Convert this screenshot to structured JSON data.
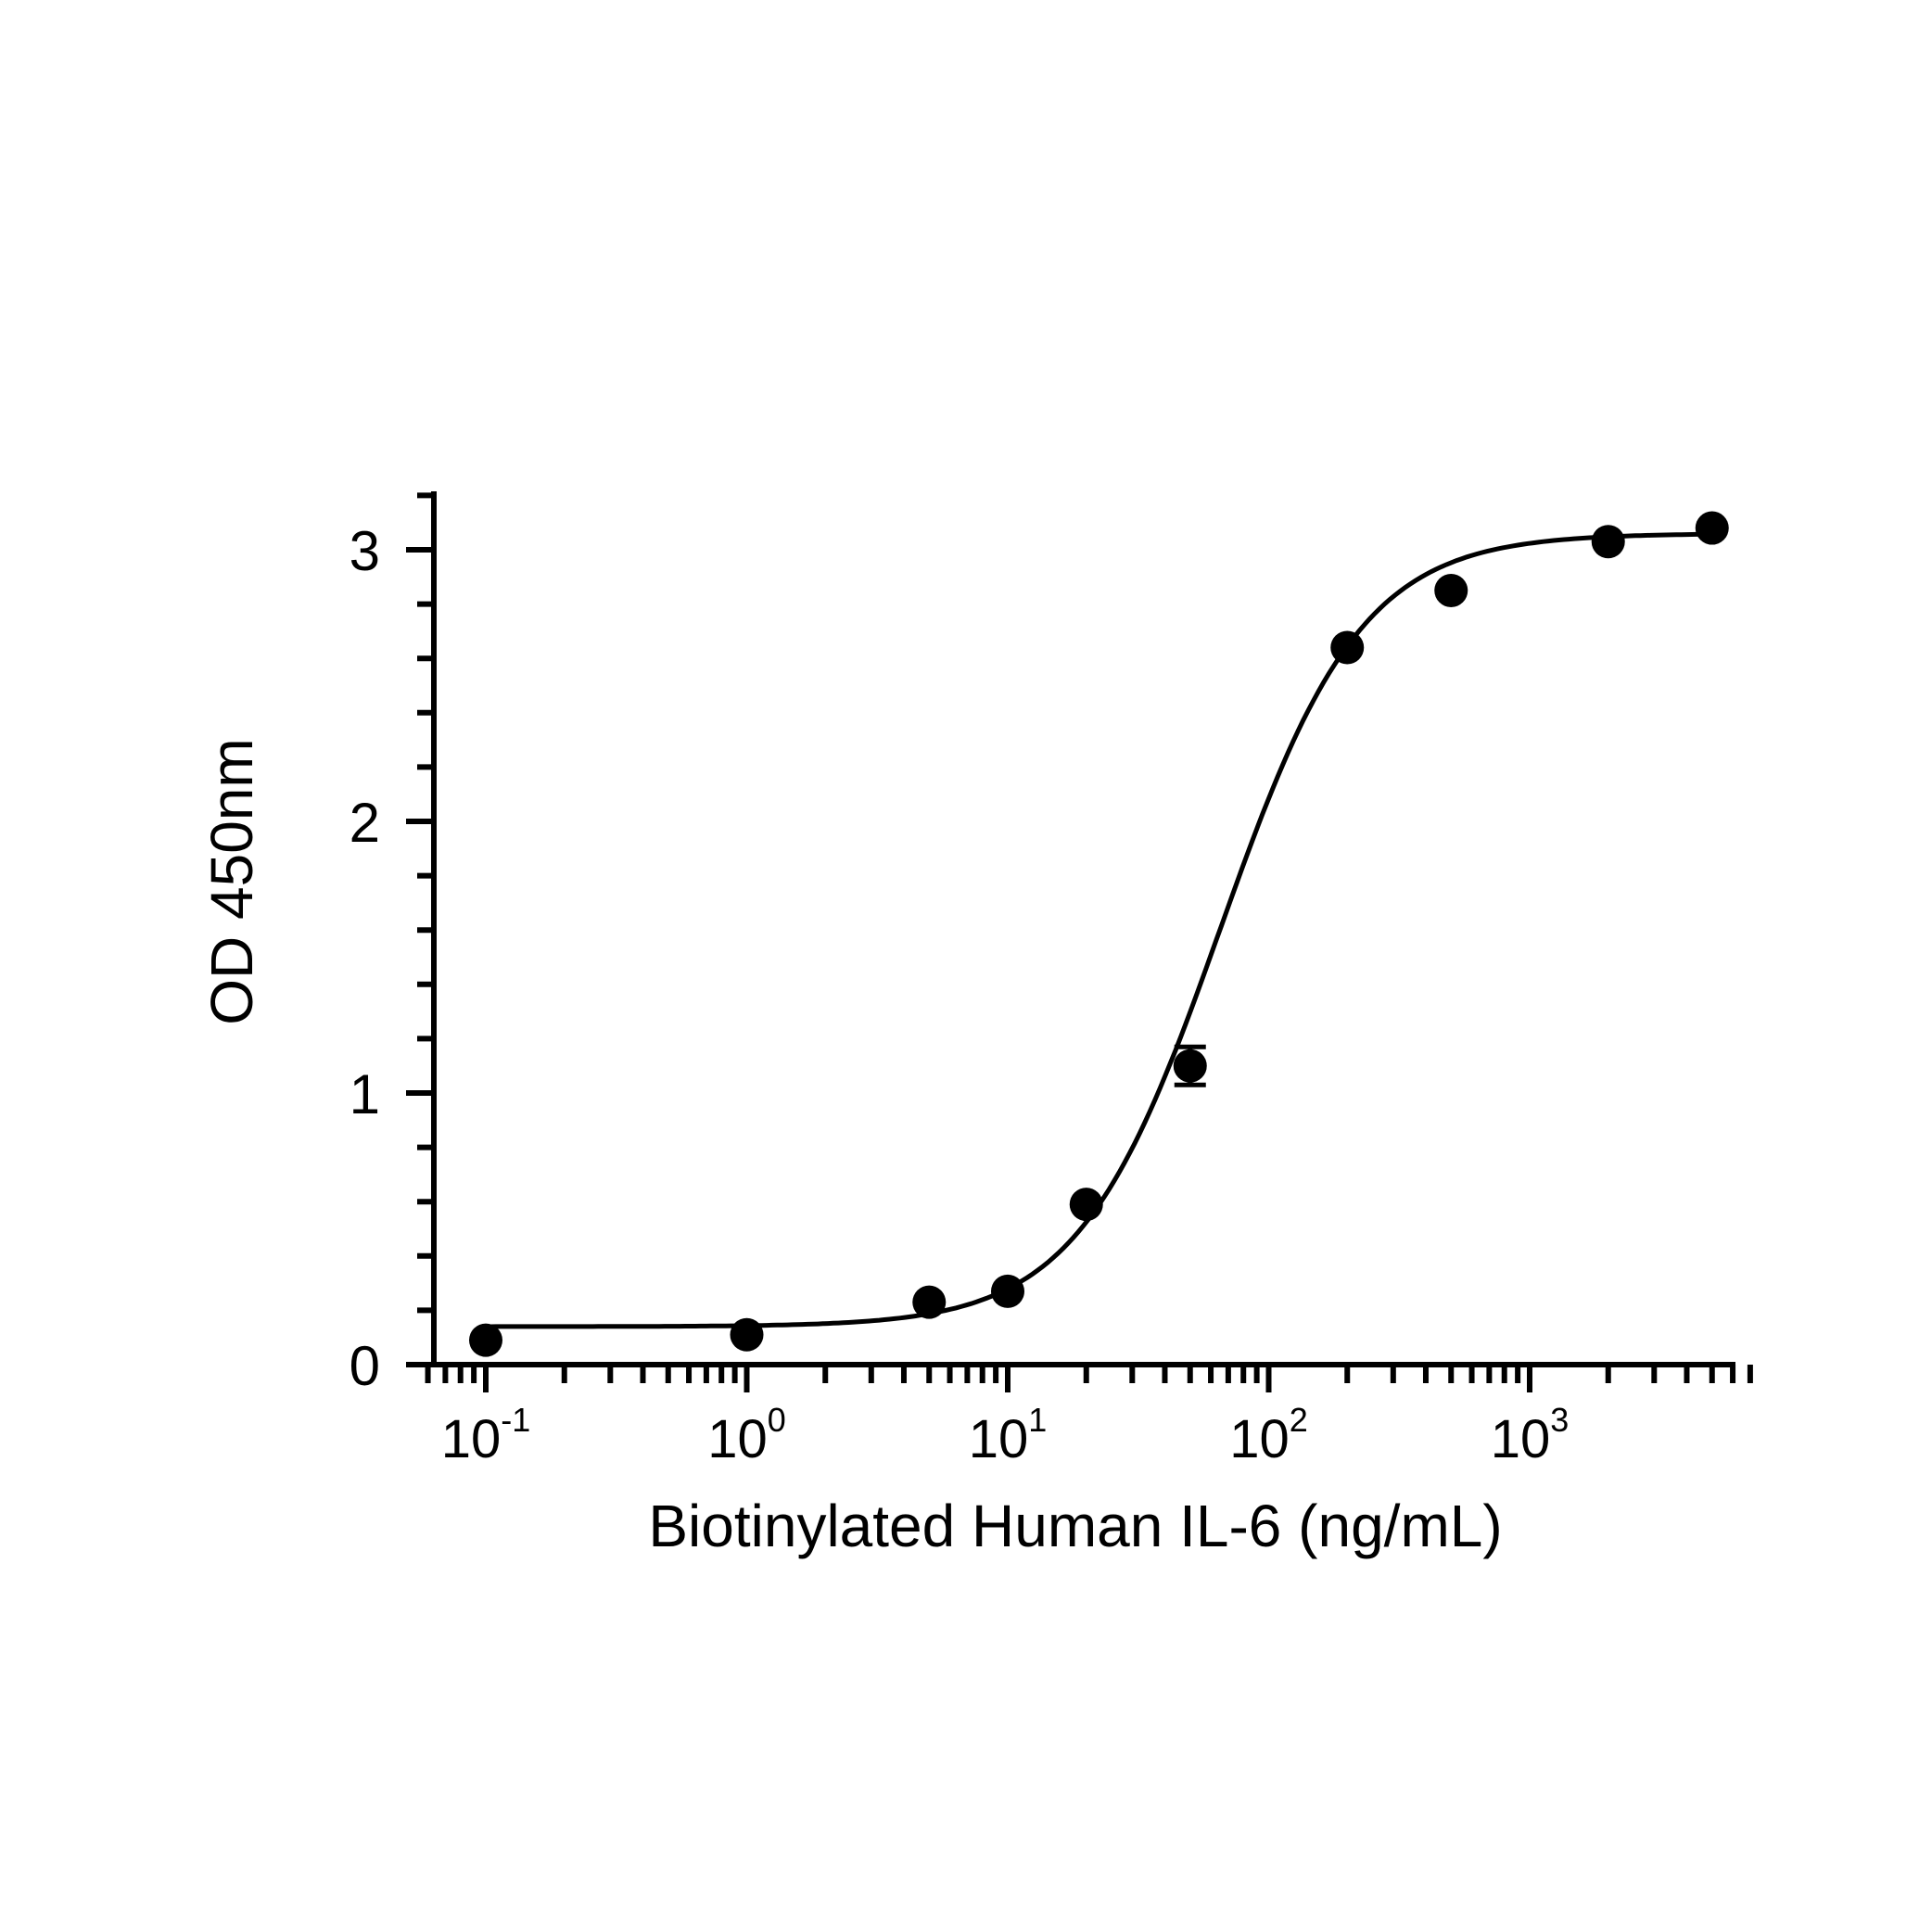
{
  "chart_data": {
    "type": "scatter",
    "x_scale": "log",
    "xlabel": "Biotinylated Human IL-6 (ng/mL)",
    "ylabel": "OD 450nm",
    "xlim": [
      0.06,
      7000
    ],
    "ylim": [
      0,
      3.2
    ],
    "x_ticks": [
      {
        "value": 0.1,
        "base": "10",
        "exp": "-1"
      },
      {
        "value": 1,
        "base": "10",
        "exp": "0"
      },
      {
        "value": 10,
        "base": "10",
        "exp": "1"
      },
      {
        "value": 100,
        "base": "10",
        "exp": "2"
      },
      {
        "value": 1000,
        "base": "10",
        "exp": "3"
      }
    ],
    "y_ticks": [
      {
        "value": 0,
        "label": "0"
      },
      {
        "value": 1,
        "label": "1"
      },
      {
        "value": 2,
        "label": "2"
      },
      {
        "value": 3,
        "label": "3"
      }
    ],
    "series": [
      {
        "points": [
          {
            "x": 0.1,
            "y": 0.09
          },
          {
            "x": 1,
            "y": 0.11
          },
          {
            "x": 5,
            "y": 0.23
          },
          {
            "x": 10,
            "y": 0.27
          },
          {
            "x": 20,
            "y": 0.59
          },
          {
            "x": 50,
            "y": 1.1,
            "err": 0.07
          },
          {
            "x": 200,
            "y": 2.64
          },
          {
            "x": 500,
            "y": 2.85
          },
          {
            "x": 2000,
            "y": 3.03
          },
          {
            "x": 5000,
            "y": 3.08
          }
        ],
        "fit": {
          "model": "4PL",
          "bottom": 0.14,
          "top": 3.06,
          "ec50": 65,
          "hill": 1.6,
          "x_range": [
            0.1,
            5000
          ]
        }
      }
    ],
    "grid": false,
    "legend": "none",
    "colors": {
      "marks": "#000000",
      "axes": "#000000",
      "background": "#ffffff"
    }
  }
}
